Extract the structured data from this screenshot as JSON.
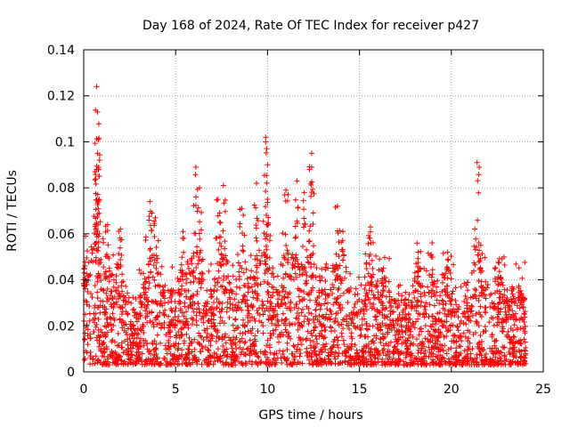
{
  "chart_data": {
    "type": "scatter",
    "title": "Day 168 of 2024, Rate Of TEC Index for receiver p427",
    "xlabel": "GPS time / hours",
    "ylabel": "ROTI / TECUs",
    "xlim": [
      0,
      25
    ],
    "ylim": [
      0,
      0.14
    ],
    "xticks": [
      "0",
      "5",
      "10",
      "15",
      "20",
      "25"
    ],
    "yticks": [
      "0",
      "0.02",
      "0.04",
      "0.06",
      "0.08",
      "0.1",
      "0.12",
      "0.14"
    ],
    "grid": true,
    "marker": "+",
    "color": "#ff0000",
    "series": [
      {
        "name": "ROTI",
        "description_points": "dense scatter of ROTI values between ~0.003 and ~0.05 across 0-24 h with peaks",
        "peaks": [
          {
            "x": 0.1,
            "y": 0.059
          },
          {
            "x": 0.7,
            "y": 0.124
          },
          {
            "x": 0.75,
            "y": 0.113
          },
          {
            "x": 0.8,
            "y": 0.101
          },
          {
            "x": 0.75,
            "y": 0.095
          },
          {
            "x": 0.7,
            "y": 0.088
          },
          {
            "x": 0.8,
            "y": 0.074
          },
          {
            "x": 1.3,
            "y": 0.064
          },
          {
            "x": 2.0,
            "y": 0.062
          },
          {
            "x": 3.6,
            "y": 0.074
          },
          {
            "x": 3.9,
            "y": 0.067
          },
          {
            "x": 5.4,
            "y": 0.061
          },
          {
            "x": 6.1,
            "y": 0.089
          },
          {
            "x": 6.3,
            "y": 0.08
          },
          {
            "x": 7.3,
            "y": 0.075
          },
          {
            "x": 7.6,
            "y": 0.081
          },
          {
            "x": 8.6,
            "y": 0.071
          },
          {
            "x": 9.4,
            "y": 0.082
          },
          {
            "x": 9.9,
            "y": 0.102
          },
          {
            "x": 9.95,
            "y": 0.097
          },
          {
            "x": 10.0,
            "y": 0.09
          },
          {
            "x": 11.0,
            "y": 0.079
          },
          {
            "x": 11.6,
            "y": 0.083
          },
          {
            "x": 12.0,
            "y": 0.078
          },
          {
            "x": 12.4,
            "y": 0.095
          },
          {
            "x": 12.4,
            "y": 0.089
          },
          {
            "x": 13.8,
            "y": 0.072
          },
          {
            "x": 14.1,
            "y": 0.061
          },
          {
            "x": 15.6,
            "y": 0.063
          },
          {
            "x": 16.3,
            "y": 0.045
          },
          {
            "x": 18.2,
            "y": 0.052
          },
          {
            "x": 18.9,
            "y": 0.051
          },
          {
            "x": 19.8,
            "y": 0.052
          },
          {
            "x": 21.4,
            "y": 0.091
          },
          {
            "x": 21.6,
            "y": 0.055
          },
          {
            "x": 22.7,
            "y": 0.041
          },
          {
            "x": 23.8,
            "y": 0.034
          }
        ]
      }
    ]
  }
}
